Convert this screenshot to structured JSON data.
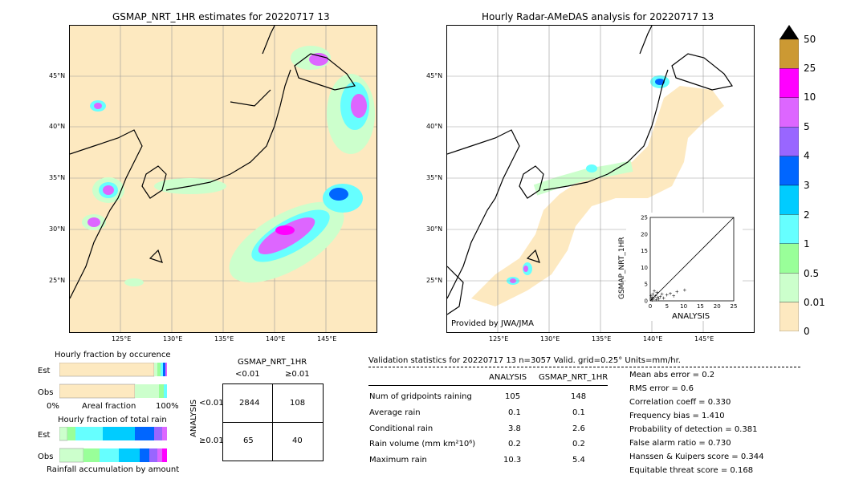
{
  "titles": {
    "left_map": "GSMAP_NRT_1HR estimates for 20220717 13",
    "right_map": "Hourly Radar-AMeDAS analysis for 20220717 13",
    "credit": "Provided by JWA/JMA"
  },
  "map_ticks": {
    "lat": [
      "45°N",
      "40°N",
      "35°N",
      "30°N",
      "25°N"
    ],
    "lon": [
      "125°E",
      "130°E",
      "135°E",
      "140°E",
      "145°E"
    ]
  },
  "colorbar": {
    "labels": [
      "50",
      "25",
      "10",
      "5",
      "4",
      "3",
      "2",
      "1",
      "0.5",
      "0.01",
      "0"
    ],
    "colors": [
      "#cc9933",
      "#ff00ff",
      "#dd66ff",
      "#9966ff",
      "#0066ff",
      "#00ccff",
      "#66ffff",
      "#99ff99",
      "#ccffcc",
      "#fde9c0"
    ],
    "extend_color": "#000000"
  },
  "scatter": {
    "ylabel": "GSMAP_NRT_1HR",
    "xlabel": "ANALYSIS",
    "ticks": [
      "0",
      "5",
      "10",
      "15",
      "20",
      "25"
    ]
  },
  "fraction_occurrence": {
    "title": "Hourly fraction by occurence",
    "rows": [
      "Est",
      "Obs"
    ],
    "xaxis_left": "0%",
    "xaxis_mid": "Areal fraction",
    "xaxis_right": "100%"
  },
  "fraction_total": {
    "title": "Hourly fraction of total rain",
    "rows": [
      "Est",
      "Obs"
    ],
    "xlabel": "Rainfall accumulation by amount"
  },
  "contingency": {
    "title": "GSMAP_NRT_1HR",
    "col_lt": "<0.01",
    "col_ge": "≥0.01",
    "row_axis": "ANALYSIS",
    "row_lt": "<0.01",
    "row_ge": "≥0.01",
    "cells": [
      "2844",
      "108",
      "65",
      "40"
    ]
  },
  "validation": {
    "header": "Validation statistics for 20220717 13  n=3057 Valid. grid=0.25°  Units=mm/hr.",
    "col_analysis": "ANALYSIS",
    "col_gsmap": "GSMAP_NRT_1HR",
    "rows": [
      {
        "label": "Num of gridpoints raining",
        "analysis": "105",
        "gsmap": "148"
      },
      {
        "label": "Average rain",
        "analysis": "0.1",
        "gsmap": "0.1"
      },
      {
        "label": "Conditional rain",
        "analysis": "3.8",
        "gsmap": "2.6"
      },
      {
        "label": "Rain volume (mm km²10⁶)",
        "analysis": "0.2",
        "gsmap": "0.2"
      },
      {
        "label": "Maximum rain",
        "analysis": "10.3",
        "gsmap": "5.4"
      }
    ],
    "scores": [
      "Mean abs error =    0.2",
      "RMS error =    0.6",
      "Correlation coeff =  0.330",
      "Frequency bias =  1.410",
      "Probability of detection =  0.381",
      "False alarm ratio =  0.730",
      "Hanssen & Kuipers score =  0.344",
      "Equitable threat score =  0.168"
    ]
  },
  "chart_data": [
    {
      "type": "table",
      "title": "GSMAP_NRT_1HR",
      "rows": [
        "<0.01",
        "≥0.01"
      ],
      "columns": [
        "<0.01",
        "≥0.01"
      ],
      "values": [
        [
          2844,
          108
        ],
        [
          65,
          40
        ]
      ]
    },
    {
      "type": "scatter",
      "xlabel": "ANALYSIS",
      "ylabel": "GSMAP_NRT_1HR",
      "xlim": [
        0,
        25
      ],
      "ylim": [
        0,
        25
      ],
      "x": [
        0.3,
        0.5,
        0.8,
        1.0,
        1.2,
        1.5,
        2.0,
        2.5,
        3.0,
        3.5,
        4.0,
        5.0,
        6.0,
        7.0,
        8.0,
        10.3,
        0.6,
        1.8,
        0.2,
        2.2
      ],
      "y": [
        0.5,
        1.0,
        2.0,
        0.8,
        3.0,
        1.5,
        2.5,
        0.6,
        1.2,
        2.0,
        0.9,
        1.8,
        2.2,
        1.5,
        2.8,
        3.2,
        0.2,
        0.4,
        1.6,
        1.1
      ]
    }
  ]
}
